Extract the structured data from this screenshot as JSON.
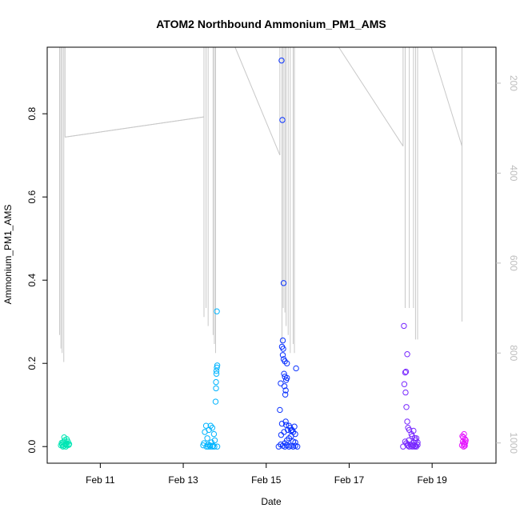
{
  "chart_data": {
    "type": "scatter",
    "title": "ATOM2 Northbound Ammonium_PM1_AMS",
    "xlabel": "Date",
    "ylabel": "Ammonium_PM1_AMS",
    "x_axis": {
      "unit": "days (February)",
      "range": [
        9.72,
        20.54
      ],
      "ticks": [
        {
          "value": 11,
          "label": "Feb 11"
        },
        {
          "value": 13,
          "label": "Feb 13"
        },
        {
          "value": 15,
          "label": "Feb 15"
        },
        {
          "value": 17,
          "label": "Feb 17"
        },
        {
          "value": 19,
          "label": "Feb 19"
        }
      ]
    },
    "y_axis": {
      "range": [
        -0.04,
        0.96
      ],
      "ticks": [
        {
          "value": 0.0,
          "label": "0.0"
        },
        {
          "value": 0.2,
          "label": "0.2"
        },
        {
          "value": 0.4,
          "label": "0.4"
        },
        {
          "value": 0.6,
          "label": "0.6"
        },
        {
          "value": 0.8,
          "label": "0.8"
        }
      ]
    },
    "y2_axis": {
      "reversed": true,
      "range": [
        1045,
        120
      ],
      "color": "#bdbdbd",
      "ticks": [
        {
          "value": 200,
          "label": "200"
        },
        {
          "value": 400,
          "label": "400"
        },
        {
          "value": 600,
          "label": "600"
        },
        {
          "value": 800,
          "label": "800"
        },
        {
          "value": 1000,
          "label": "1000"
        }
      ]
    },
    "grid": false,
    "legend": "none",
    "series": [
      {
        "color": "#00e6b4",
        "points": [
          [
            10.05,
            0.003
          ],
          [
            10.08,
            0.005
          ],
          [
            10.1,
            0.01
          ],
          [
            10.12,
            0.002
          ],
          [
            10.14,
            0.015
          ],
          [
            10.16,
            0.005
          ],
          [
            10.18,
            0.008
          ],
          [
            10.2,
            0.003
          ],
          [
            10.22,
            0.012
          ],
          [
            10.24,
            0.004
          ],
          [
            10.13,
            0.022
          ],
          [
            10.1,
            0.0
          ],
          [
            10.17,
            0.0
          ],
          [
            10.25,
            0.006
          ],
          [
            10.07,
            0.009
          ],
          [
            10.19,
            0.018
          ]
        ]
      },
      {
        "color": "#00b4ff",
        "points": [
          [
            13.48,
            0.003
          ],
          [
            13.5,
            0.008
          ],
          [
            13.52,
            0.035
          ],
          [
            13.55,
            0.05
          ],
          [
            13.58,
            0.02
          ],
          [
            13.6,
            0.005
          ],
          [
            13.62,
            0.04
          ],
          [
            13.64,
            0.003
          ],
          [
            13.66,
            0.05
          ],
          [
            13.68,
            0.01
          ],
          [
            13.7,
            0.045
          ],
          [
            13.72,
            0.002
          ],
          [
            13.74,
            0.03
          ],
          [
            13.76,
            0.015
          ],
          [
            13.78,
            0.108
          ],
          [
            13.79,
            0.14
          ],
          [
            13.8,
            0.175
          ],
          [
            13.81,
            0.19
          ],
          [
            13.82,
            0.195
          ],
          [
            13.8,
            0.182
          ],
          [
            13.79,
            0.155
          ],
          [
            13.81,
            0.325
          ],
          [
            13.56,
            0.0
          ],
          [
            13.6,
            0.0
          ],
          [
            13.65,
            0.0
          ],
          [
            13.7,
            0.0
          ],
          [
            13.75,
            0.0
          ],
          [
            13.82,
            0.0
          ]
        ]
      },
      {
        "color": "#0a32ff",
        "points": [
          [
            15.37,
            0.928
          ],
          [
            15.39,
            0.785
          ],
          [
            15.42,
            0.393
          ],
          [
            15.4,
            0.255
          ],
          [
            15.38,
            0.24
          ],
          [
            15.41,
            0.235
          ],
          [
            15.4,
            0.22
          ],
          [
            15.42,
            0.21
          ],
          [
            15.45,
            0.205
          ],
          [
            15.5,
            0.2
          ],
          [
            15.43,
            0.175
          ],
          [
            15.45,
            0.168
          ],
          [
            15.48,
            0.16
          ],
          [
            15.5,
            0.165
          ],
          [
            15.44,
            0.145
          ],
          [
            15.47,
            0.135
          ],
          [
            15.46,
            0.125
          ],
          [
            15.35,
            0.152
          ],
          [
            15.72,
            0.188
          ],
          [
            15.33,
            0.088
          ],
          [
            15.38,
            0.055
          ],
          [
            15.43,
            0.035
          ],
          [
            15.47,
            0.06
          ],
          [
            15.52,
            0.04
          ],
          [
            15.55,
            0.05
          ],
          [
            15.58,
            0.045
          ],
          [
            15.6,
            0.038
          ],
          [
            15.62,
            0.04
          ],
          [
            15.65,
            0.035
          ],
          [
            15.68,
            0.048
          ],
          [
            15.7,
            0.03
          ],
          [
            15.55,
            0.02
          ],
          [
            15.6,
            0.025
          ],
          [
            15.5,
            0.015
          ],
          [
            15.65,
            0.012
          ],
          [
            15.45,
            0.008
          ],
          [
            15.7,
            0.01
          ],
          [
            15.35,
            0.005
          ],
          [
            15.4,
            0.002
          ],
          [
            15.45,
            0.0
          ],
          [
            15.5,
            0.003
          ],
          [
            15.55,
            0.0
          ],
          [
            15.6,
            0.002
          ],
          [
            15.65,
            0.0
          ],
          [
            15.7,
            0.002
          ],
          [
            15.75,
            0.0
          ],
          [
            15.3,
            0.0
          ],
          [
            15.36,
            0.028
          ],
          [
            15.48,
            0.052
          ]
        ]
      },
      {
        "color": "#7828ff",
        "points": [
          [
            18.32,
            0.29
          ],
          [
            18.4,
            0.222
          ],
          [
            18.35,
            0.178
          ],
          [
            18.37,
            0.18
          ],
          [
            18.33,
            0.15
          ],
          [
            18.36,
            0.13
          ],
          [
            18.38,
            0.095
          ],
          [
            18.4,
            0.06
          ],
          [
            18.42,
            0.045
          ],
          [
            18.45,
            0.04
          ],
          [
            18.5,
            0.03
          ],
          [
            18.52,
            0.025
          ],
          [
            18.55,
            0.038
          ],
          [
            18.58,
            0.02
          ],
          [
            18.6,
            0.015
          ],
          [
            18.62,
            0.02
          ],
          [
            18.65,
            0.01
          ],
          [
            18.35,
            0.012
          ],
          [
            18.38,
            0.008
          ],
          [
            18.4,
            0.004
          ],
          [
            18.42,
            0.002
          ],
          [
            18.45,
            0.0
          ],
          [
            18.48,
            0.005
          ],
          [
            18.5,
            0.002
          ],
          [
            18.52,
            0.0
          ],
          [
            18.55,
            0.003
          ],
          [
            18.58,
            0.0
          ],
          [
            18.6,
            0.002
          ],
          [
            18.62,
            0.0
          ],
          [
            18.65,
            0.004
          ],
          [
            18.3,
            0.0
          ],
          [
            18.44,
            0.015
          ],
          [
            18.56,
            0.01
          ]
        ]
      },
      {
        "color": "#e619ff",
        "points": [
          [
            19.72,
            0.003
          ],
          [
            19.74,
            0.012
          ],
          [
            19.75,
            0.022
          ],
          [
            19.76,
            0.008
          ],
          [
            19.77,
            0.03
          ],
          [
            19.78,
            0.005
          ],
          [
            19.79,
            0.018
          ],
          [
            19.8,
            0.01
          ],
          [
            19.81,
            0.015
          ],
          [
            19.73,
            0.025
          ],
          [
            19.76,
            0.0
          ],
          [
            19.79,
            0.002
          ]
        ]
      }
    ],
    "secondary_series": {
      "axis": "right",
      "color": "#c8c8c8",
      "segments": [
        [
          [
            10.02,
            120
          ],
          [
            10.02,
            760
          ],
          [
            10.03,
            120
          ],
          [
            10.05,
            120
          ],
          [
            10.05,
            790
          ],
          [
            10.06,
            120
          ],
          [
            10.08,
            120
          ],
          [
            10.08,
            800
          ],
          [
            10.09,
            120
          ],
          [
            10.12,
            120
          ],
          [
            10.12,
            820
          ],
          [
            10.13,
            120
          ],
          [
            10.15,
            120
          ],
          [
            10.15,
            320
          ],
          [
            19.72,
            320
          ]
        ]
      ],
      "lines": [
        [
          [
            10.15,
            320
          ],
          [
            13.5,
            275
          ]
        ],
        [
          [
            13.5,
            275
          ],
          [
            13.5,
            120
          ]
        ],
        [
          [
            13.5,
            120
          ],
          [
            13.5,
            720
          ]
        ],
        [
          [
            13.55,
            120
          ],
          [
            13.55,
            700
          ]
        ],
        [
          [
            13.6,
            120
          ],
          [
            13.6,
            740
          ]
        ],
        [
          [
            13.72,
            120
          ],
          [
            13.72,
            760
          ]
        ],
        [
          [
            13.75,
            120
          ],
          [
            13.75,
            780
          ]
        ],
        [
          [
            13.78,
            120
          ],
          [
            13.78,
            800
          ]
        ],
        [
          [
            14.25,
            120
          ],
          [
            15.33,
            360
          ]
        ],
        [
          [
            15.33,
            360
          ],
          [
            15.33,
            120
          ]
        ],
        [
          [
            15.38,
            120
          ],
          [
            15.38,
            780
          ]
        ],
        [
          [
            15.41,
            120
          ],
          [
            15.41,
            700
          ]
        ],
        [
          [
            15.45,
            120
          ],
          [
            15.45,
            710
          ]
        ],
        [
          [
            15.48,
            120
          ],
          [
            15.48,
            740
          ]
        ],
        [
          [
            15.53,
            120
          ],
          [
            15.53,
            760
          ]
        ],
        [
          [
            15.58,
            120
          ],
          [
            15.58,
            800
          ]
        ],
        [
          [
            15.65,
            120
          ],
          [
            15.65,
            780
          ]
        ],
        [
          [
            15.68,
            120
          ],
          [
            15.68,
            800
          ]
        ],
        [
          [
            16.75,
            120
          ],
          [
            18.3,
            340
          ]
        ],
        [
          [
            18.3,
            340
          ],
          [
            18.3,
            120
          ]
        ],
        [
          [
            18.35,
            120
          ],
          [
            18.35,
            700
          ]
        ],
        [
          [
            18.45,
            120
          ],
          [
            18.45,
            700
          ]
        ],
        [
          [
            18.55,
            120
          ],
          [
            18.55,
            700
          ]
        ],
        [
          [
            18.6,
            120
          ],
          [
            18.6,
            770
          ]
        ],
        [
          [
            18.65,
            120
          ],
          [
            18.65,
            770
          ]
        ],
        [
          [
            18.98,
            120
          ],
          [
            19.72,
            340
          ]
        ],
        [
          [
            19.72,
            340
          ],
          [
            19.72,
            120
          ]
        ],
        [
          [
            19.72,
            120
          ],
          [
            19.72,
            730
          ]
        ]
      ]
    }
  }
}
